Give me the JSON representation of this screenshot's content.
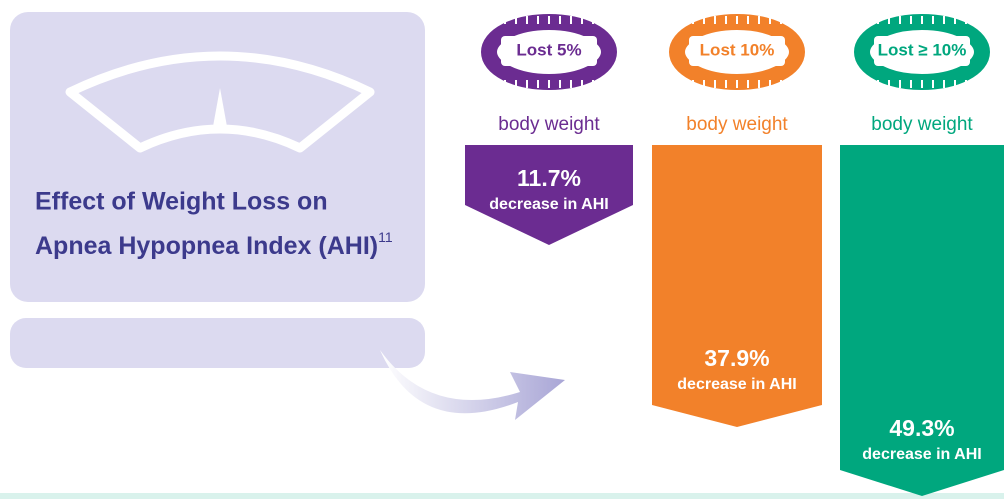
{
  "title": {
    "lines": [
      "Effect of Weight Loss on",
      "Apnea Hypopnea Index (AHI)"
    ],
    "footnote": "11"
  },
  "items": [
    {
      "tape": "Lost 5%",
      "caption": "body weight",
      "value": "11.7%",
      "subtext": "decrease in AHI"
    },
    {
      "tape": "Lost 10%",
      "caption": "body weight",
      "value": "37.9%",
      "subtext": "decrease in AHI"
    },
    {
      "tape": "Lost ≥ 10%",
      "caption": "body weight",
      "value": "49.3%",
      "subtext": "decrease in AHI"
    }
  ]
}
